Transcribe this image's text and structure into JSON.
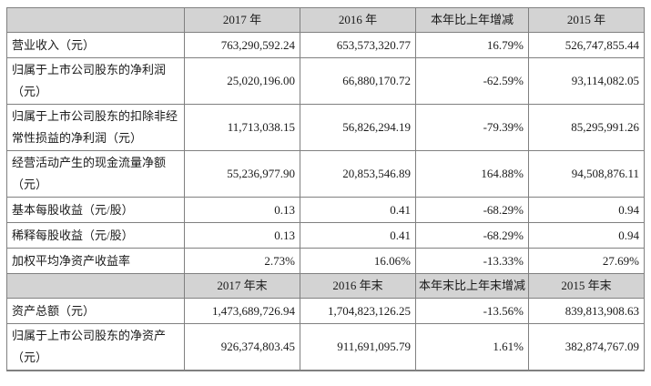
{
  "colors": {
    "border": "#808080",
    "header_bg": "#d3d3d3",
    "label_bg": "#d3d3d3",
    "cell_bg": "#ffffff"
  },
  "table": {
    "name": "key-financial-indicators",
    "rows": [
      {
        "kind": "header",
        "cells": [
          "",
          "2017 年",
          "2016 年",
          "本年比上年增减",
          "2015 年"
        ]
      },
      {
        "kind": "data",
        "label": "营业收入（元）",
        "values": [
          "763,290,592.24",
          "653,573,320.77",
          "16.79%",
          "526,747,855.44"
        ]
      },
      {
        "kind": "data",
        "label": "归属于上市公司股东的净利润（元）",
        "values": [
          "25,020,196.00",
          "66,880,170.72",
          "-62.59%",
          "93,114,082.05"
        ]
      },
      {
        "kind": "data",
        "label": "归属于上市公司股东的扣除非经常性损益的净利润（元）",
        "values": [
          "11,713,038.15",
          "56,826,294.19",
          "-79.39%",
          "85,295,991.26"
        ]
      },
      {
        "kind": "data",
        "label": "经营活动产生的现金流量净额（元）",
        "values": [
          "55,236,977.90",
          "20,853,546.89",
          "164.88%",
          "94,508,876.11"
        ]
      },
      {
        "kind": "data",
        "label": "基本每股收益（元/股）",
        "values": [
          "0.13",
          "0.41",
          "-68.29%",
          "0.94"
        ]
      },
      {
        "kind": "data",
        "label": "稀释每股收益（元/股）",
        "values": [
          "0.13",
          "0.41",
          "-68.29%",
          "0.94"
        ]
      },
      {
        "kind": "data",
        "label": "加权平均净资产收益率",
        "values": [
          "2.73%",
          "16.06%",
          "-13.33%",
          "27.69%"
        ]
      },
      {
        "kind": "header",
        "cells": [
          "",
          "2017 年末",
          "2016 年末",
          "本年末比上年末增减",
          "2015 年末"
        ]
      },
      {
        "kind": "data",
        "label": "资产总额（元）",
        "values": [
          "1,473,689,726.94",
          "1,704,823,126.25",
          "-13.56%",
          "839,813,908.63"
        ]
      },
      {
        "kind": "data",
        "label": "归属于上市公司股东的净资产（元）",
        "values": [
          "926,374,803.45",
          "911,691,095.79",
          "1.61%",
          "382,874,767.09"
        ]
      }
    ]
  }
}
